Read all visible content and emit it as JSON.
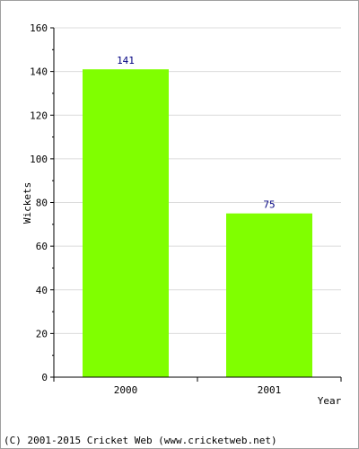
{
  "chart_data": {
    "type": "bar",
    "categories": [
      "2000",
      "2001"
    ],
    "values": [
      141,
      75
    ],
    "data_labels": [
      "141",
      "75"
    ],
    "xlabel": "Year",
    "ylabel": "Wickets",
    "ylim": [
      0,
      160
    ],
    "yticks": [
      0,
      20,
      40,
      60,
      80,
      100,
      120,
      140,
      160
    ],
    "grid": true,
    "bar_color": "#80ff00",
    "label_color": "#000080"
  },
  "footer": {
    "copyright": "(C) 2001-2015 Cricket Web (www.cricketweb.net)"
  }
}
